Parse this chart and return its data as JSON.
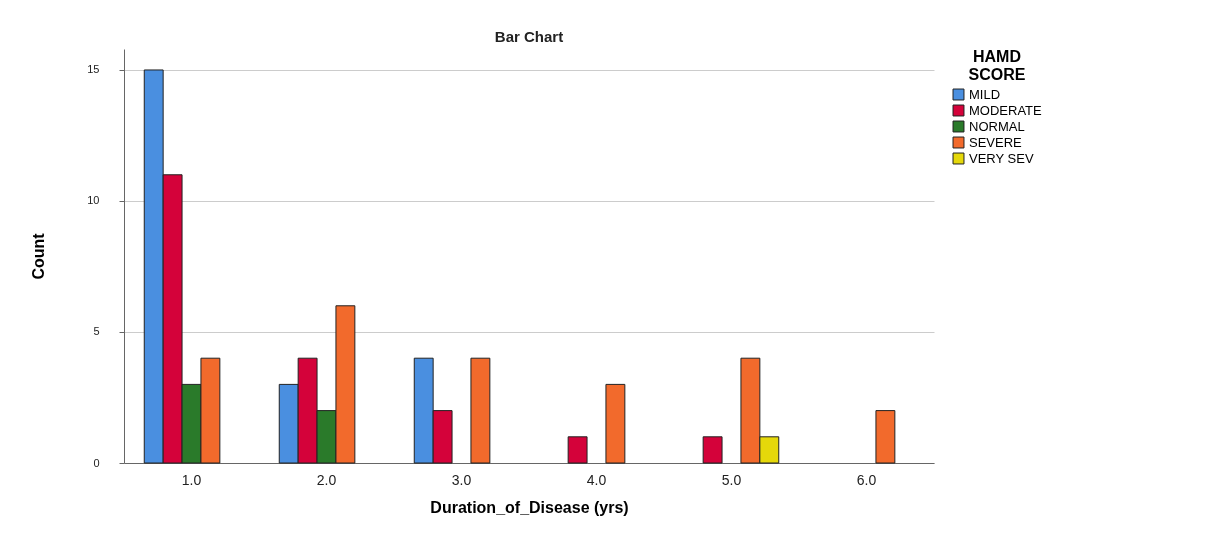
{
  "chart_data": {
    "type": "bar",
    "title": "Bar Chart",
    "xlabel": "Duration_of_Disease (yrs)",
    "ylabel": "Count",
    "legend_title": "HAMD SCORE",
    "categories": [
      "1.0",
      "2.0",
      "3.0",
      "4.0",
      "5.0",
      "6.0"
    ],
    "series": [
      {
        "name": "MILD",
        "color": "#4a8fe0",
        "values": [
          15,
          3,
          4,
          null,
          null,
          null
        ]
      },
      {
        "name": "MODERATE",
        "color": "#d4023a",
        "values": [
          11,
          4,
          2,
          1,
          1,
          null
        ]
      },
      {
        "name": "NORMAL",
        "color": "#2a7a2a",
        "values": [
          3,
          2,
          null,
          null,
          null,
          null
        ]
      },
      {
        "name": "SEVERE",
        "color": "#f26a2c",
        "values": [
          4,
          6,
          4,
          3,
          4,
          2
        ]
      },
      {
        "name": "VERY SEV",
        "color": "#e5d80a",
        "values": [
          null,
          null,
          null,
          null,
          1,
          null
        ]
      }
    ],
    "ylim": [
      0,
      15.8
    ],
    "yticks": [
      0,
      5,
      10,
      15
    ],
    "grid": "y",
    "legend": "top right"
  }
}
